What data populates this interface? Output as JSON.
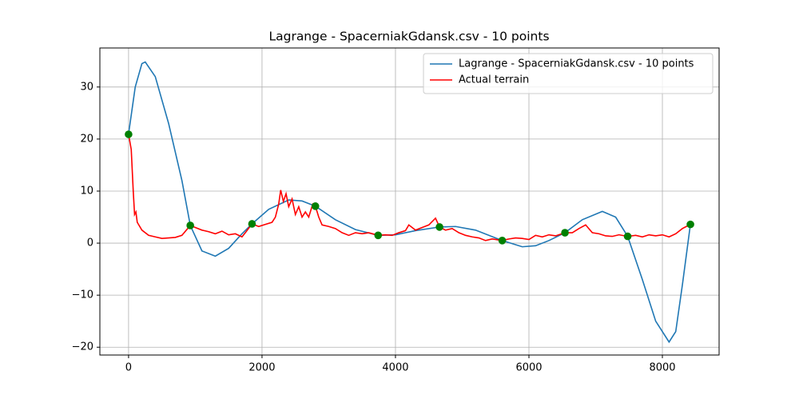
{
  "chart_data": {
    "type": "line",
    "title": "Lagrange - SpacerniakGdansk.csv - 10 points",
    "xlim": [
      -430,
      8850
    ],
    "ylim": [
      -21.5,
      37.5
    ],
    "xticks": [
      0,
      2000,
      4000,
      6000,
      8000
    ],
    "yticks": [
      {
        "value": -20,
        "label": "−20"
      },
      {
        "value": -10,
        "label": "−10"
      },
      0,
      10,
      20,
      30
    ],
    "grid": true,
    "legend": "upper right",
    "series": [
      {
        "name": "Lagrange - SpacerniakGdansk.csv - 10 points",
        "color": "#1f77b4",
        "x": [
          0,
          100,
          200,
          250,
          400,
          600,
          800,
          925,
          1100,
          1300,
          1500,
          1700,
          1850,
          2100,
          2400,
          2600,
          2800,
          3100,
          3400,
          3740,
          4000,
          4300,
          4660,
          4900,
          5200,
          5600,
          5900,
          6100,
          6300,
          6540,
          6800,
          7100,
          7300,
          7480,
          7700,
          7900,
          8100,
          8200,
          8300,
          8420
        ],
        "y": [
          21,
          30,
          34.5,
          34.8,
          32,
          23,
          12,
          3.4,
          -1.5,
          -2.5,
          -1,
          1.8,
          3.7,
          6.5,
          8.3,
          8.1,
          7.1,
          4.5,
          2.6,
          1.5,
          1.6,
          2.4,
          3.1,
          3.2,
          2.5,
          0.5,
          -0.7,
          -0.5,
          0.5,
          2.0,
          4.5,
          6.1,
          5,
          1.3,
          -7,
          -15,
          -19,
          -17,
          -8,
          3.6
        ]
      },
      {
        "name": "Actual terrain",
        "color": "#ff0000",
        "x": [
          0,
          40,
          70,
          90,
          110,
          130,
          200,
          300,
          400,
          500,
          600,
          700,
          800,
          925,
          1000,
          1100,
          1200,
          1300,
          1400,
          1500,
          1600,
          1700,
          1750,
          1850,
          1950,
          2050,
          2150,
          2200,
          2250,
          2280,
          2320,
          2360,
          2400,
          2450,
          2500,
          2550,
          2600,
          2650,
          2700,
          2760,
          2800,
          2850,
          2900,
          3000,
          3100,
          3200,
          3300,
          3400,
          3500,
          3600,
          3740,
          3850,
          3950,
          4050,
          4150,
          4200,
          4300,
          4400,
          4500,
          4600,
          4660,
          4750,
          4850,
          4950,
          5050,
          5150,
          5250,
          5350,
          5450,
          5600,
          5700,
          5800,
          5900,
          6000,
          6100,
          6200,
          6300,
          6400,
          6540,
          6650,
          6750,
          6850,
          6950,
          7050,
          7150,
          7250,
          7350,
          7480,
          7600,
          7700,
          7800,
          7900,
          8000,
          8100,
          8200,
          8300,
          8420
        ],
        "y": [
          20.9,
          18,
          10,
          5.5,
          6,
          4,
          2.5,
          1.5,
          1.2,
          0.9,
          1,
          1.1,
          1.5,
          3.4,
          3,
          2.5,
          2.2,
          1.8,
          2.3,
          1.6,
          1.8,
          1.2,
          2,
          3.7,
          3.2,
          3.6,
          4,
          5,
          7.5,
          10.2,
          8,
          9.5,
          7,
          8.5,
          5.5,
          7,
          5,
          6,
          5,
          7.5,
          7.1,
          5,
          3.5,
          3.2,
          2.8,
          2,
          1.5,
          2,
          1.8,
          2,
          1.5,
          1.6,
          1.5,
          2,
          2.4,
          3.5,
          2.5,
          3,
          3.5,
          4.8,
          3.1,
          2.5,
          2.8,
          2,
          1.5,
          1.2,
          1,
          0.5,
          0.8,
          0.5,
          0.8,
          1,
          0.9,
          0.7,
          1.5,
          1.2,
          1.6,
          1.4,
          2,
          2,
          2.8,
          3.5,
          2,
          1.8,
          1.4,
          1.3,
          1.6,
          1.3,
          1.5,
          1.2,
          1.6,
          1.4,
          1.6,
          1.2,
          1.8,
          2.8,
          3.6
        ]
      }
    ],
    "points": {
      "color": "#008000",
      "x": [
        0,
        925,
        1850,
        2800,
        3740,
        4660,
        5600,
        6540,
        7480,
        8420
      ],
      "y": [
        20.9,
        3.4,
        3.7,
        7.1,
        1.5,
        3.1,
        0.5,
        2.0,
        1.3,
        3.6
      ]
    }
  }
}
